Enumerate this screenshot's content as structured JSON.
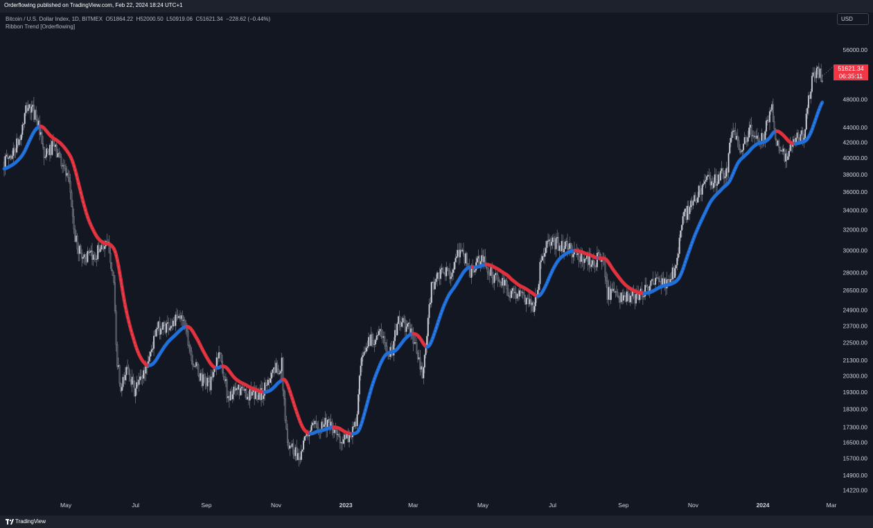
{
  "header": {
    "published": "Orderflowing published on TradingView.com, Feb 22, 2024 18:24 UTC+1"
  },
  "legend": {
    "symbol": "Bitcoin / U.S. Dollar Index, 1D, BITMEX",
    "o_label": "O",
    "o": "51864.22",
    "h_label": "H",
    "h": "52000.50",
    "l_label": "L",
    "l": "50919.06",
    "c_label": "C",
    "c": "51621.34",
    "change": "−228.62 (−0.44%)",
    "indicator": "Ribbon Trend [Orderflowing]"
  },
  "currency": "USD",
  "last_price": {
    "price": "51621.34",
    "countdown": "06:35:11"
  },
  "footer": {
    "brand": "TradingView"
  },
  "colors": {
    "bg": "#131722",
    "up": "#1e6fd9",
    "down": "#e0313d",
    "candle": "#d1d4dc",
    "axis": "#d1d4dc"
  },
  "chart_data": {
    "type": "candlestick",
    "y_scale": "log",
    "ylim": [
      13900,
      60000
    ],
    "y_ticks": [
      56000,
      48000,
      44000,
      42000,
      40000,
      38000,
      36000,
      34000,
      32000,
      30000,
      28000,
      26500,
      24900,
      23700,
      22500,
      21300,
      20300,
      19300,
      18300,
      17300,
      16500,
      15700,
      14900,
      14220
    ],
    "y_tick_labels": [
      "56000.00",
      "48000.00",
      "44000.00",
      "42000.00",
      "40000.00",
      "38000.00",
      "36000.00",
      "34000.00",
      "32000.00",
      "30000.00",
      "28000.00",
      "26500.00",
      "24900.00",
      "23700.00",
      "22500.00",
      "21300.00",
      "20300.00",
      "19300.00",
      "18300.00",
      "17300.00",
      "16500.00",
      "15700.00",
      "14900.00",
      "14220.00"
    ],
    "x_labels": [
      "May",
      "Jul",
      "Sep",
      "Nov",
      "2023",
      "Mar",
      "May",
      "Jul",
      "Sep",
      "Nov",
      "2024",
      "Mar"
    ],
    "x_label_bold": [
      false,
      false,
      false,
      false,
      true,
      false,
      false,
      false,
      false,
      false,
      true,
      false
    ],
    "x_range": [
      "2022-03-08",
      "2024-03-01"
    ],
    "close_anchors": [
      [
        "2022-03-08",
        39500
      ],
      [
        "2022-03-15",
        40500
      ],
      [
        "2022-03-22",
        42500
      ],
      [
        "2022-03-28",
        47000
      ],
      [
        "2022-04-05",
        45800
      ],
      [
        "2022-04-12",
        40000
      ],
      [
        "2022-04-20",
        41500
      ],
      [
        "2022-04-28",
        39500
      ],
      [
        "2022-05-05",
        36000
      ],
      [
        "2022-05-09",
        31000
      ],
      [
        "2022-05-15",
        29500
      ],
      [
        "2022-05-25",
        29300
      ],
      [
        "2022-06-01",
        30500
      ],
      [
        "2022-06-08",
        30300
      ],
      [
        "2022-06-12",
        27000
      ],
      [
        "2022-06-14",
        22000
      ],
      [
        "2022-06-18",
        19200
      ],
      [
        "2022-06-24",
        21000
      ],
      [
        "2022-06-30",
        19300
      ],
      [
        "2022-07-10",
        20800
      ],
      [
        "2022-07-20",
        23500
      ],
      [
        "2022-07-30",
        23800
      ],
      [
        "2022-08-12",
        24400
      ],
      [
        "2022-08-20",
        21300
      ],
      [
        "2022-08-28",
        20000
      ],
      [
        "2022-09-05",
        19800
      ],
      [
        "2022-09-12",
        22000
      ],
      [
        "2022-09-20",
        19000
      ],
      [
        "2022-09-30",
        19400
      ],
      [
        "2022-10-10",
        19100
      ],
      [
        "2022-10-20",
        19200
      ],
      [
        "2022-10-28",
        20600
      ],
      [
        "2022-11-06",
        21000
      ],
      [
        "2022-11-09",
        17500
      ],
      [
        "2022-11-12",
        16500
      ],
      [
        "2022-11-21",
        15800
      ],
      [
        "2022-11-30",
        17100
      ],
      [
        "2022-12-14",
        17600
      ],
      [
        "2022-12-25",
        16800
      ],
      [
        "2023-01-01",
        16600
      ],
      [
        "2023-01-10",
        17400
      ],
      [
        "2023-01-14",
        20800
      ],
      [
        "2023-01-21",
        22700
      ],
      [
        "2023-01-31",
        23100
      ],
      [
        "2023-02-10",
        21700
      ],
      [
        "2023-02-16",
        24200
      ],
      [
        "2023-02-28",
        23200
      ],
      [
        "2023-03-09",
        20200
      ],
      [
        "2023-03-12",
        22100
      ],
      [
        "2023-03-17",
        26900
      ],
      [
        "2023-03-25",
        27800
      ],
      [
        "2023-04-05",
        28200
      ],
      [
        "2023-04-12",
        30300
      ],
      [
        "2023-04-20",
        28000
      ],
      [
        "2023-04-30",
        29200
      ],
      [
        "2023-05-10",
        27700
      ],
      [
        "2023-05-25",
        26400
      ],
      [
        "2023-06-10",
        25800
      ],
      [
        "2023-06-15",
        25100
      ],
      [
        "2023-06-20",
        28300
      ],
      [
        "2023-06-25",
        30500
      ],
      [
        "2023-07-05",
        30600
      ],
      [
        "2023-07-14",
        30300
      ],
      [
        "2023-07-25",
        29300
      ],
      [
        "2023-08-05",
        29100
      ],
      [
        "2023-08-15",
        29200
      ],
      [
        "2023-08-18",
        26300
      ],
      [
        "2023-08-25",
        26000
      ],
      [
        "2023-09-05",
        25800
      ],
      [
        "2023-09-12",
        25900
      ],
      [
        "2023-09-20",
        26600
      ],
      [
        "2023-10-01",
        27200
      ],
      [
        "2023-10-10",
        27000
      ],
      [
        "2023-10-16",
        28400
      ],
      [
        "2023-10-23",
        33100
      ],
      [
        "2023-10-31",
        34500
      ],
      [
        "2023-11-10",
        37000
      ],
      [
        "2023-11-20",
        37300
      ],
      [
        "2023-12-01",
        38600
      ],
      [
        "2023-12-05",
        43900
      ],
      [
        "2023-12-12",
        41300
      ],
      [
        "2023-12-20",
        43500
      ],
      [
        "2023-12-31",
        42300
      ],
      [
        "2024-01-09",
        46300
      ],
      [
        "2024-01-12",
        42800
      ],
      [
        "2024-01-22",
        39600
      ],
      [
        "2024-01-28",
        42100
      ],
      [
        "2024-02-06",
        43000
      ],
      [
        "2024-02-09",
        47000
      ],
      [
        "2024-02-14",
        51500
      ],
      [
        "2024-02-19",
        52200
      ],
      [
        "2024-02-22",
        51621
      ]
    ]
  }
}
